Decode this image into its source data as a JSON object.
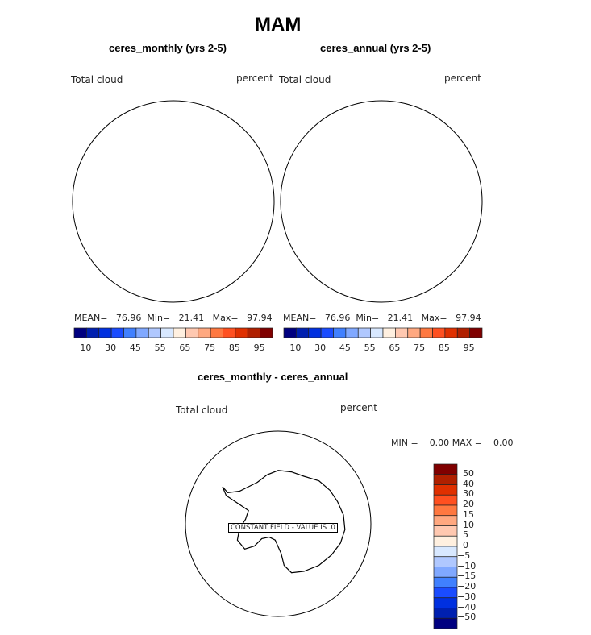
{
  "title": "MAM",
  "panels": [
    {
      "subtitle": "ceres_monthly (yrs 2-5)",
      "variable": "Total cloud",
      "units": "percent",
      "stats": {
        "mean_label": "MEAN=",
        "mean": "76.96",
        "min_label": "Min=",
        "min": "21.41",
        "max_label": "Max=",
        "max": "97.94"
      }
    },
    {
      "subtitle": "ceres_annual (yrs 2-5)",
      "variable": "Total cloud",
      "units": "percent",
      "stats": {
        "mean_label": "MEAN=",
        "mean": "76.96",
        "min_label": "Min=",
        "min": "21.41",
        "max_label": "Max=",
        "max": "97.94"
      }
    }
  ],
  "top_colorbar": {
    "labels": [
      "10",
      "30",
      "45",
      "55",
      "65",
      "75",
      "85",
      "95"
    ],
    "colors": [
      "#000080",
      "#0020b0",
      "#0030e0",
      "#1a4cff",
      "#4080ff",
      "#80a8ff",
      "#b0c8ff",
      "#d8e8ff",
      "#fff0e0",
      "#ffc8b0",
      "#ffa880",
      "#ff7840",
      "#ff5020",
      "#e03000",
      "#b02000",
      "#800000"
    ]
  },
  "diff_panel": {
    "subtitle": "ceres_monthly - ceres_annual",
    "variable": "Total cloud",
    "units": "percent",
    "min_label": "MIN =",
    "min": "0.00",
    "max_label": "MAX =",
    "max": "0.00",
    "constant_note": "CONSTANT FIELD - VALUE IS .0"
  },
  "diff_colorbar": {
    "labels": [
      "50",
      "40",
      "30",
      "20",
      "15",
      "10",
      "5",
      "0",
      "−5",
      "−10",
      "−15",
      "−20",
      "−30",
      "−40",
      "−50"
    ]
  }
}
